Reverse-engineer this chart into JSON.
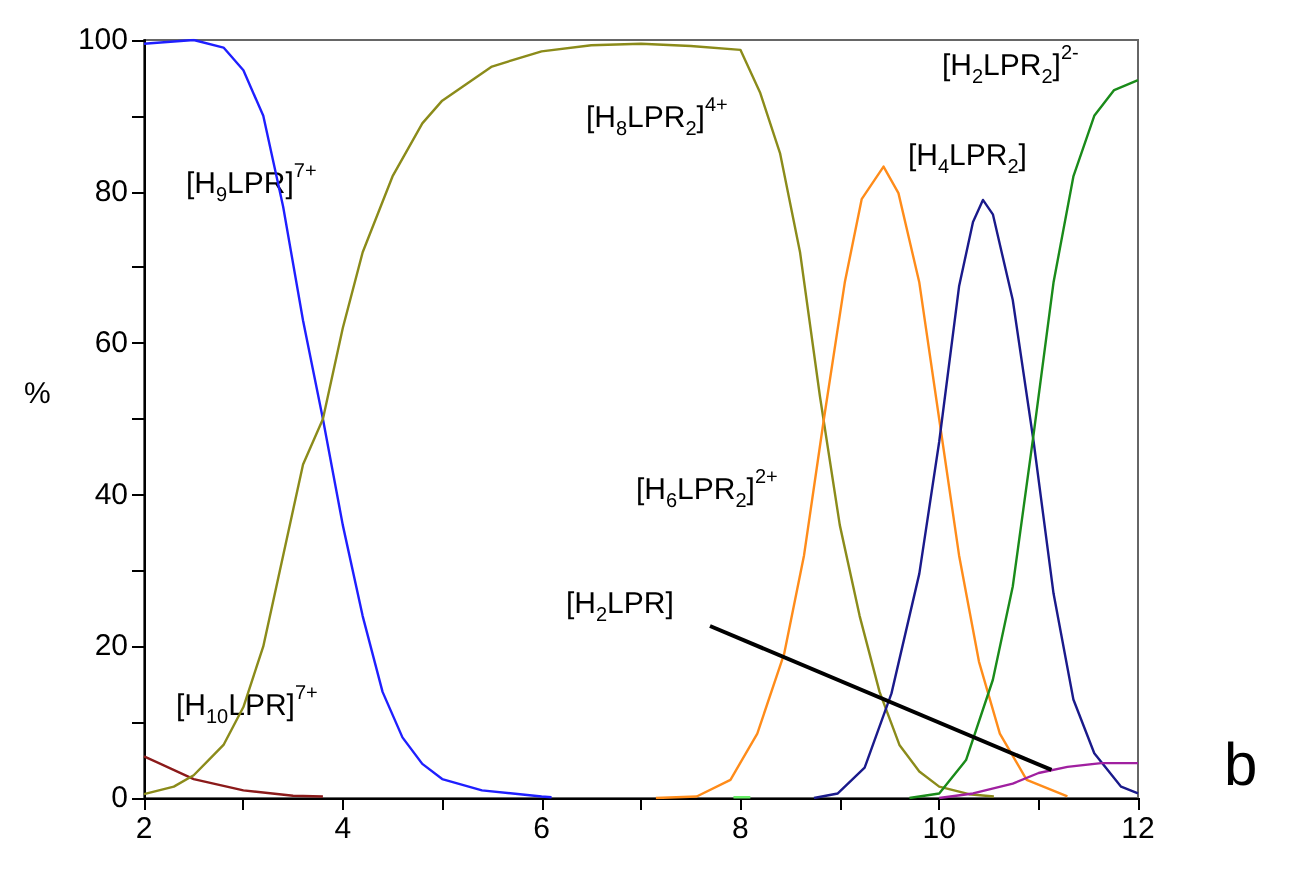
{
  "chart_data": {
    "type": "line",
    "ylabel": "%",
    "xlim": [
      2,
      12
    ],
    "ylim": [
      0,
      100
    ],
    "xticks": [
      2,
      {
        "value": 3,
        "label": null
      },
      4,
      {
        "value": 5,
        "label": null
      },
      6,
      {
        "value": 7,
        "label": null
      },
      8,
      {
        "value": 9,
        "label": null
      },
      10,
      {
        "value": 11,
        "label": null
      },
      12
    ],
    "yticks": [
      0,
      {
        "value": 10,
        "label": null
      },
      20,
      {
        "value": 30,
        "label": null
      },
      40,
      {
        "value": 50,
        "label": null
      },
      60,
      {
        "value": 70,
        "label": null
      },
      80,
      {
        "value": 90,
        "label": null
      },
      100
    ],
    "marker": "none",
    "series": [
      {
        "color": "#8b1a1a",
        "x": [
          2,
          2.5,
          3,
          3.5,
          3.8
        ],
        "values": [
          5.5,
          2.5,
          1,
          0.3,
          0.2
        ]
      },
      {
        "color": "#1f1fff",
        "x": [
          2,
          2.5,
          2.8,
          3,
          3.2,
          3.4,
          3.6,
          3.8,
          4,
          4.2,
          4.4,
          4.6,
          4.8,
          5,
          5.4,
          6,
          6.1
        ],
        "values": [
          99.5,
          100,
          99,
          96,
          90,
          78,
          63,
          50,
          36,
          24,
          14,
          8,
          4.5,
          2.5,
          1,
          0.2,
          0.1
        ]
      },
      {
        "color": "#8b8b1a",
        "x": [
          2,
          2.3,
          2.5,
          2.8,
          3,
          3.2,
          3.4,
          3.6,
          3.8,
          4,
          4.2,
          4.5,
          4.8,
          5,
          5.5,
          6,
          6.5,
          7,
          7.5,
          8,
          8.2,
          8.4,
          8.6,
          8.8,
          9,
          9.2,
          9.4,
          9.6,
          9.8,
          10,
          10.3,
          10.55
        ],
        "values": [
          0.5,
          1.5,
          3,
          7,
          12,
          20,
          32,
          44,
          50,
          62,
          72,
          82,
          89,
          92,
          96.5,
          98.5,
          99.3,
          99.5,
          99.2,
          98.7,
          93,
          85,
          72,
          53,
          36,
          24,
          14,
          7,
          3.5,
          1.5,
          0.5,
          0.2
        ]
      },
      {
        "color": "#66ee66",
        "x": [
          7.93,
          8.1
        ],
        "values": [
          0.1,
          0.1
        ]
      },
      {
        "color": "#ff8c1a",
        "x": [
          7.15,
          7.56,
          7.9,
          8.17,
          8.44,
          8.64,
          8.84,
          9.05,
          9.22,
          9.44,
          9.59,
          9.8,
          10,
          10.2,
          10.4,
          10.61,
          10.88,
          11.29
        ],
        "values": [
          0,
          0.2,
          2.4,
          8.5,
          19,
          32,
          50,
          68,
          79,
          83.3,
          79.8,
          68,
          50,
          32,
          18,
          8.5,
          2.4,
          0.2
        ]
      },
      {
        "color": "#1a1a8b",
        "x": [
          8.74,
          8.98,
          9.25,
          9.52,
          9.8,
          10,
          10.2,
          10.34,
          10.44,
          10.54,
          10.74,
          10.95,
          11.15,
          11.35,
          11.56,
          11.83,
          12
        ],
        "values": [
          0,
          0.6,
          4,
          13.8,
          29.6,
          47,
          67.5,
          76,
          78.9,
          77,
          65.7,
          47,
          27,
          13,
          5.9,
          1.5,
          0.6
        ]
      },
      {
        "color": "#1a8b1a",
        "x": [
          9.7,
          10,
          10.27,
          10.54,
          10.74,
          10.95,
          11.15,
          11.35,
          11.56,
          11.76,
          12
        ],
        "values": [
          0,
          0.6,
          5,
          15.6,
          27.9,
          48,
          68,
          82,
          90,
          93.4,
          94.7
        ]
      },
      {
        "color": "#a020a0",
        "x": [
          10,
          10.34,
          10.74,
          11,
          11.29,
          11.63,
          12
        ],
        "values": [
          0,
          0.6,
          1.9,
          3.3,
          4.1,
          4.6,
          4.6
        ]
      }
    ],
    "annotations": [
      "[H$_{9}$LPR]$^{7+}$",
      "[H$_{10}$LPR]$^{7+}$",
      "[H$_{8}$LPR$_{2}$]$^{4+}$",
      "[H$_{6}$LPR$_{2}$]$^{2+}$",
      "[H$_{4}$LPR$_{2}$]",
      "[H$_{2}$LPR$_{2}$]$^{2-}$",
      {
        "text": "[H$_{2}$LPR]",
        "x": 11.13,
        "y": 3.7
      },
      "b"
    ]
  }
}
